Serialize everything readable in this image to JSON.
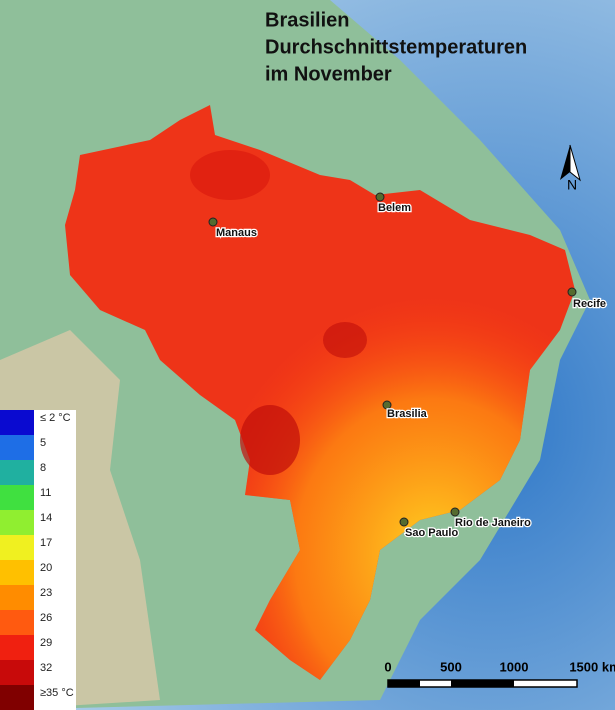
{
  "title": [
    "Brasilien",
    "Durchschnittstemperaturen",
    "im November"
  ],
  "north": "N",
  "cities": [
    {
      "label": "Manaus"
    },
    {
      "label": "Belem"
    },
    {
      "label": "Recife"
    },
    {
      "label": "Brasilia"
    },
    {
      "label": "Sao Paulo"
    },
    {
      "label": "Rio de Janeiro"
    }
  ],
  "legend": [
    {
      "label": "≤ 2 °C",
      "color": "#0a0ad0"
    },
    {
      "label": "5",
      "color": "#1e6ee6"
    },
    {
      "label": "8",
      "color": "#20b0a0"
    },
    {
      "label": "11",
      "color": "#40e040"
    },
    {
      "label": "14",
      "color": "#90ee30"
    },
    {
      "label": "17",
      "color": "#f0f020"
    },
    {
      "label": "20",
      "color": "#ffc000"
    },
    {
      "label": "23",
      "color": "#ff8c00"
    },
    {
      "label": "26",
      "color": "#ff5a10"
    },
    {
      "label": "29",
      "color": "#f02010"
    },
    {
      "label": "32",
      "color": "#c80a0a"
    },
    {
      "label": "≥35 °C",
      "color": "#800000"
    }
  ],
  "scale_bar": {
    "labels": [
      "0",
      "500",
      "1000",
      "1500 km"
    ]
  }
}
